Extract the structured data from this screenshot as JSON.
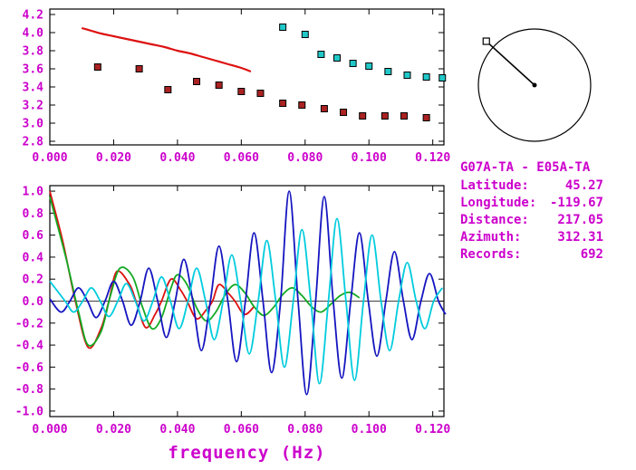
{
  "colors": {
    "label_magenta": "#cc00cc",
    "axis_black": "#000000"
  },
  "compass": {
    "azimuth_deg": 312.31
  },
  "info": {
    "title": "G07A-TA - E05A-TA",
    "rows": [
      {
        "label": "Latitude:",
        "value": "45.27"
      },
      {
        "label": "Longitude:",
        "value": "-119.67"
      },
      {
        "label": "Distance:",
        "value": "217.05"
      },
      {
        "label": "Azimuth:",
        "value": "312.31"
      },
      {
        "label": "Records:",
        "value": "692"
      }
    ]
  },
  "chart_data": [
    {
      "type": "scatter",
      "title": "",
      "xlabel": "",
      "ylabel": "",
      "xlim": [
        0,
        0.1235
      ],
      "ylim": [
        2.76,
        4.26
      ],
      "grid": false,
      "zeroline": false,
      "xtick_labels": [
        "0.000",
        "0.020",
        "0.040",
        "0.060",
        "0.080",
        "0.100",
        "0.120"
      ],
      "ytick_labels": [
        "2.8",
        "3.0",
        "3.2",
        "3.4",
        "3.6",
        "3.8",
        "4.0",
        "4.2"
      ],
      "series": [
        {
          "name": "reference-dispersion-curve",
          "kind": "line",
          "color": "#dd1111",
          "width": 2.2,
          "points": [
            [
              0.01,
              4.05
            ],
            [
              0.013,
              4.02
            ],
            [
              0.016,
              3.99
            ],
            [
              0.02,
              3.96
            ],
            [
              0.024,
              3.93
            ],
            [
              0.028,
              3.9
            ],
            [
              0.032,
              3.87
            ],
            [
              0.036,
              3.84
            ],
            [
              0.04,
              3.8
            ],
            [
              0.044,
              3.77
            ],
            [
              0.048,
              3.73
            ],
            [
              0.052,
              3.69
            ],
            [
              0.056,
              3.65
            ],
            [
              0.06,
              3.61
            ],
            [
              0.063,
              3.57
            ]
          ]
        },
        {
          "name": "picked-dispersion-points",
          "kind": "scatter",
          "marker": "square",
          "color": "#aa2222",
          "edge": "#000000",
          "points": [
            [
              0.015,
              3.62
            ],
            [
              0.028,
              3.6
            ],
            [
              0.037,
              3.37
            ],
            [
              0.046,
              3.46
            ],
            [
              0.053,
              3.42
            ],
            [
              0.06,
              3.35
            ],
            [
              0.066,
              3.33
            ],
            [
              0.073,
              3.22
            ],
            [
              0.079,
              3.2
            ],
            [
              0.086,
              3.16
            ],
            [
              0.092,
              3.12
            ],
            [
              0.098,
              3.08
            ],
            [
              0.105,
              3.08
            ],
            [
              0.111,
              3.08
            ],
            [
              0.118,
              3.06
            ]
          ]
        },
        {
          "name": "secondary-dispersion-points",
          "kind": "scatter",
          "marker": "square",
          "color": "#20c8c8",
          "edge": "#000000",
          "points": [
            [
              0.073,
              4.06
            ],
            [
              0.08,
              3.98
            ],
            [
              0.085,
              3.76
            ],
            [
              0.09,
              3.72
            ],
            [
              0.095,
              3.66
            ],
            [
              0.1,
              3.63
            ],
            [
              0.106,
              3.57
            ],
            [
              0.112,
              3.53
            ],
            [
              0.118,
              3.51
            ],
            [
              0.123,
              3.5
            ]
          ]
        }
      ]
    },
    {
      "type": "line",
      "title": "",
      "xlabel": "frequency (Hz)",
      "ylabel": "",
      "xlim": [
        0,
        0.1235
      ],
      "ylim": [
        -1.05,
        1.05
      ],
      "grid": false,
      "zeroline": true,
      "xtick_labels": [
        "0.000",
        "0.020",
        "0.040",
        "0.060",
        "0.080",
        "0.100",
        "0.120"
      ],
      "ytick_labels": [
        "-1.0",
        "-0.8",
        "-0.6",
        "-0.4",
        "-0.2",
        "0.0",
        "0.2",
        "0.4",
        "0.6",
        "0.8",
        "1.0"
      ],
      "series": [
        {
          "name": "red-cross-spectrum-curve",
          "kind": "line",
          "color": "#dd1111",
          "width": 1.8,
          "points": [
            [
              0.0,
              1.0
            ],
            [
              0.004,
              0.55
            ],
            [
              0.008,
              0.0
            ],
            [
              0.012,
              -0.42
            ],
            [
              0.016,
              -0.25
            ],
            [
              0.0185,
              0.0
            ],
            [
              0.021,
              0.27
            ],
            [
              0.025,
              0.15
            ],
            [
              0.027,
              0.0
            ],
            [
              0.03,
              -0.24
            ],
            [
              0.033,
              -0.12
            ],
            [
              0.035,
              0.0
            ],
            [
              0.038,
              0.2
            ],
            [
              0.041,
              0.1
            ],
            [
              0.043,
              0.0
            ],
            [
              0.046,
              -0.16
            ],
            [
              0.049,
              -0.08
            ],
            [
              0.051,
              0.0
            ],
            [
              0.053,
              0.15
            ],
            [
              0.056,
              0.07
            ],
            [
              0.058,
              0.0
            ],
            [
              0.061,
              -0.12
            ],
            [
              0.064,
              -0.05
            ]
          ]
        },
        {
          "name": "green-cross-spectrum-curve",
          "kind": "line",
          "color": "#11aa22",
          "width": 1.8,
          "points": [
            [
              0.0,
              0.95
            ],
            [
              0.005,
              0.4
            ],
            [
              0.009,
              -0.1
            ],
            [
              0.012,
              -0.4
            ],
            [
              0.016,
              -0.28
            ],
            [
              0.019,
              0.05
            ],
            [
              0.022,
              0.3
            ],
            [
              0.026,
              0.22
            ],
            [
              0.029,
              -0.05
            ],
            [
              0.032,
              -0.25
            ],
            [
              0.035,
              -0.15
            ],
            [
              0.038,
              0.12
            ],
            [
              0.04,
              0.24
            ],
            [
              0.043,
              0.15
            ],
            [
              0.046,
              -0.06
            ],
            [
              0.049,
              -0.18
            ],
            [
              0.052,
              -0.1
            ],
            [
              0.055,
              0.06
            ],
            [
              0.058,
              0.15
            ],
            [
              0.061,
              0.08
            ],
            [
              0.064,
              -0.05
            ],
            [
              0.067,
              -0.13
            ],
            [
              0.07,
              -0.06
            ],
            [
              0.073,
              0.06
            ],
            [
              0.076,
              0.12
            ],
            [
              0.079,
              0.05
            ],
            [
              0.082,
              -0.05
            ],
            [
              0.085,
              -0.1
            ],
            [
              0.088,
              -0.03
            ],
            [
              0.091,
              0.05
            ],
            [
              0.094,
              0.08
            ],
            [
              0.097,
              0.03
            ]
          ]
        },
        {
          "name": "blue-cross-spectrum-curve",
          "kind": "line",
          "color": "#1515c0",
          "width": 1.8,
          "points": [
            [
              0.0,
              0.02
            ],
            [
              0.0035,
              -0.1
            ],
            [
              0.0063,
              0
            ],
            [
              0.009,
              0.12
            ],
            [
              0.0118,
              0
            ],
            [
              0.0145,
              -0.15
            ],
            [
              0.0173,
              0
            ],
            [
              0.02,
              0.18
            ],
            [
              0.0228,
              0
            ],
            [
              0.0255,
              -0.22
            ],
            [
              0.0283,
              0
            ],
            [
              0.031,
              0.3
            ],
            [
              0.0338,
              0
            ],
            [
              0.0365,
              -0.33
            ],
            [
              0.0393,
              0
            ],
            [
              0.042,
              0.38
            ],
            [
              0.0448,
              0
            ],
            [
              0.0475,
              -0.45
            ],
            [
              0.0503,
              0
            ],
            [
              0.053,
              0.5
            ],
            [
              0.0558,
              0
            ],
            [
              0.0585,
              -0.55
            ],
            [
              0.0613,
              0
            ],
            [
              0.064,
              0.62
            ],
            [
              0.0668,
              0
            ],
            [
              0.0695,
              -0.65
            ],
            [
              0.0723,
              0
            ],
            [
              0.075,
              1.0
            ],
            [
              0.0778,
              0
            ],
            [
              0.0805,
              -0.85
            ],
            [
              0.0833,
              0
            ],
            [
              0.086,
              0.95
            ],
            [
              0.0888,
              0
            ],
            [
              0.0915,
              -0.7
            ],
            [
              0.0943,
              0
            ],
            [
              0.097,
              0.62
            ],
            [
              0.0998,
              0
            ],
            [
              0.1025,
              -0.5
            ],
            [
              0.1053,
              0
            ],
            [
              0.108,
              0.45
            ],
            [
              0.1108,
              0
            ],
            [
              0.1135,
              -0.35
            ],
            [
              0.1163,
              0
            ],
            [
              0.119,
              0.25
            ],
            [
              0.1218,
              0
            ],
            [
              0.124,
              -0.12
            ]
          ]
        },
        {
          "name": "cyan-cross-spectrum-curve",
          "kind": "line",
          "color": "#00ccdd",
          "width": 1.8,
          "points": [
            [
              0.0,
              0.18
            ],
            [
              0.0048,
              0
            ],
            [
              0.0075,
              -0.1
            ],
            [
              0.0103,
              0
            ],
            [
              0.013,
              0.12
            ],
            [
              0.0158,
              0
            ],
            [
              0.0185,
              -0.14
            ],
            [
              0.0213,
              0
            ],
            [
              0.024,
              0.16
            ],
            [
              0.0268,
              0
            ],
            [
              0.0295,
              -0.18
            ],
            [
              0.0323,
              0
            ],
            [
              0.035,
              0.22
            ],
            [
              0.0378,
              0
            ],
            [
              0.0405,
              -0.25
            ],
            [
              0.0433,
              0
            ],
            [
              0.046,
              0.3
            ],
            [
              0.0488,
              0
            ],
            [
              0.0515,
              -0.35
            ],
            [
              0.0543,
              0
            ],
            [
              0.057,
              0.42
            ],
            [
              0.0598,
              0
            ],
            [
              0.0625,
              -0.48
            ],
            [
              0.0653,
              0
            ],
            [
              0.068,
              0.55
            ],
            [
              0.0708,
              0
            ],
            [
              0.0735,
              -0.6
            ],
            [
              0.0763,
              0
            ],
            [
              0.079,
              0.65
            ],
            [
              0.0818,
              0
            ],
            [
              0.0845,
              -0.75
            ],
            [
              0.0873,
              0
            ],
            [
              0.09,
              0.75
            ],
            [
              0.0928,
              0
            ],
            [
              0.0955,
              -0.72
            ],
            [
              0.0983,
              0
            ],
            [
              0.101,
              0.6
            ],
            [
              0.1038,
              0
            ],
            [
              0.1065,
              -0.45
            ],
            [
              0.1093,
              0
            ],
            [
              0.112,
              0.35
            ],
            [
              0.1148,
              0
            ],
            [
              0.1175,
              -0.25
            ],
            [
              0.1203,
              0
            ],
            [
              0.123,
              0.12
            ]
          ]
        }
      ]
    }
  ]
}
